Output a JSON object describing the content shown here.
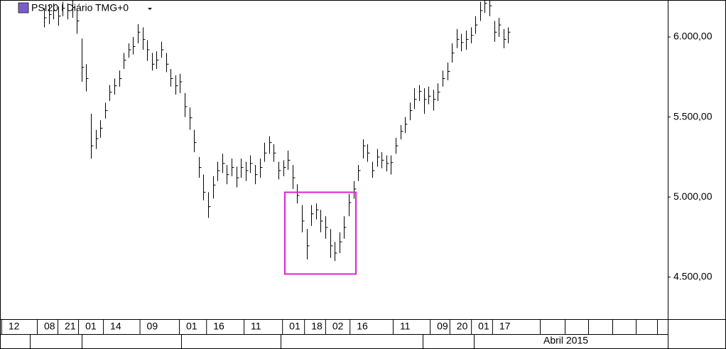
{
  "chart_data": {
    "type": "hlc",
    "title": "PSI20 I Diário TMG+0",
    "close": [
      6120,
      6140,
      6165,
      6130,
      6180,
      6165,
      6185,
      6100,
      5810,
      5740,
      5320,
      5365,
      5430,
      5540,
      5655,
      5695,
      5740,
      5855,
      5920,
      5940,
      6030,
      5985,
      5920,
      5830,
      5855,
      5920,
      5830,
      5740,
      5695,
      5720,
      5565,
      5495,
      5340,
      5185,
      5030,
      4940,
      5075,
      5165,
      5210,
      5140,
      5185,
      5120,
      5185,
      5165,
      5210,
      5140,
      5185,
      5275,
      5340,
      5275,
      5165,
      5185,
      5230,
      5120,
      5010,
      4850,
      4695,
      4895,
      4920,
      4850,
      4810,
      4695,
      4650,
      4720,
      4810,
      4965,
      5050,
      5165,
      5320,
      5275,
      5165,
      5250,
      5230,
      5210,
      5215,
      5320,
      5410,
      5455,
      5540,
      5610,
      5660,
      5610,
      5630,
      5610,
      5655,
      5740,
      5785,
      5900,
      5985,
      5965,
      5985,
      6010,
      6075,
      6165,
      6210,
      6195,
      6030,
      6075,
      5985,
      6030
    ],
    "high": [
      6180,
      6200,
      6210,
      6190,
      6220,
      6210,
      6230,
      6180,
      5990,
      5830,
      5520,
      5420,
      5480,
      5590,
      5700,
      5740,
      5790,
      5900,
      5960,
      6000,
      6080,
      6060,
      5980,
      5900,
      5910,
      5970,
      5900,
      5800,
      5760,
      5770,
      5650,
      5560,
      5420,
      5250,
      5140,
      5030,
      5130,
      5220,
      5270,
      5200,
      5240,
      5190,
      5240,
      5220,
      5260,
      5200,
      5240,
      5340,
      5380,
      5330,
      5220,
      5230,
      5290,
      5200,
      5080,
      4950,
      4800,
      4950,
      4960,
      4920,
      4880,
      4800,
      4720,
      4780,
      4880,
      5020,
      5100,
      5200,
      5360,
      5330,
      5220,
      5300,
      5280,
      5260,
      5260,
      5370,
      5450,
      5500,
      5590,
      5680,
      5700,
      5680,
      5690,
      5670,
      5710,
      5790,
      5840,
      5960,
      6050,
      6020,
      6040,
      6060,
      6130,
      6220,
      6240,
      6240,
      6100,
      6120,
      6050,
      6060
    ],
    "low": [
      6060,
      6080,
      6110,
      6070,
      6130,
      6110,
      6120,
      6020,
      5720,
      5660,
      5240,
      5300,
      5370,
      5490,
      5600,
      5640,
      5690,
      5800,
      5870,
      5890,
      5960,
      5920,
      5850,
      5790,
      5800,
      5870,
      5780,
      5690,
      5640,
      5650,
      5500,
      5420,
      5280,
      5120,
      4980,
      4870,
      4990,
      5100,
      5150,
      5080,
      5130,
      5060,
      5120,
      5100,
      5150,
      5080,
      5120,
      5220,
      5270,
      5220,
      5110,
      5130,
      5170,
      5050,
      4960,
      4780,
      4610,
      4820,
      4860,
      4780,
      4740,
      4620,
      4600,
      4650,
      4740,
      4880,
      4990,
      5100,
      5240,
      5220,
      5120,
      5190,
      5180,
      5160,
      5140,
      5270,
      5360,
      5400,
      5480,
      5550,
      5600,
      5520,
      5580,
      5540,
      5600,
      5690,
      5730,
      5840,
      5930,
      5910,
      5920,
      5960,
      6020,
      6100,
      6150,
      6130,
      5970,
      6000,
      5930,
      5960
    ],
    "color": "#000000",
    "ylim": [
      4237,
      6231
    ],
    "yticks": [
      {
        "value": 4500,
        "label": "4.500,00"
      },
      {
        "value": 5000,
        "label": "5.000,00"
      },
      {
        "value": 5500,
        "label": "5.500,00"
      },
      {
        "value": 6000,
        "label": "6.000,00"
      }
    ],
    "xticks": [
      {
        "value": -7.6,
        "label": "12"
      },
      {
        "value": 0,
        "label": "08"
      },
      {
        "value": 4.4,
        "label": "21"
      },
      {
        "value": 8.8,
        "label": "01"
      },
      {
        "value": 14.1,
        "label": "14"
      },
      {
        "value": 21.9,
        "label": "09"
      },
      {
        "value": 30.3,
        "label": "01"
      },
      {
        "value": 36.1,
        "label": "16"
      },
      {
        "value": 44.1,
        "label": "11"
      },
      {
        "value": 52.3,
        "label": "01"
      },
      {
        "value": 57,
        "label": "18"
      },
      {
        "value": 61.5,
        "label": "02"
      },
      {
        "value": 66.7,
        "label": "16"
      },
      {
        "value": 75.9,
        "label": "11"
      },
      {
        "value": 83.8,
        "label": "09"
      },
      {
        "value": 88,
        "label": "20"
      },
      {
        "value": 92.6,
        "label": "01"
      },
      {
        "value": 97.1,
        "label": "17"
      }
    ],
    "x_period_label": "Abril 2015"
  }
}
